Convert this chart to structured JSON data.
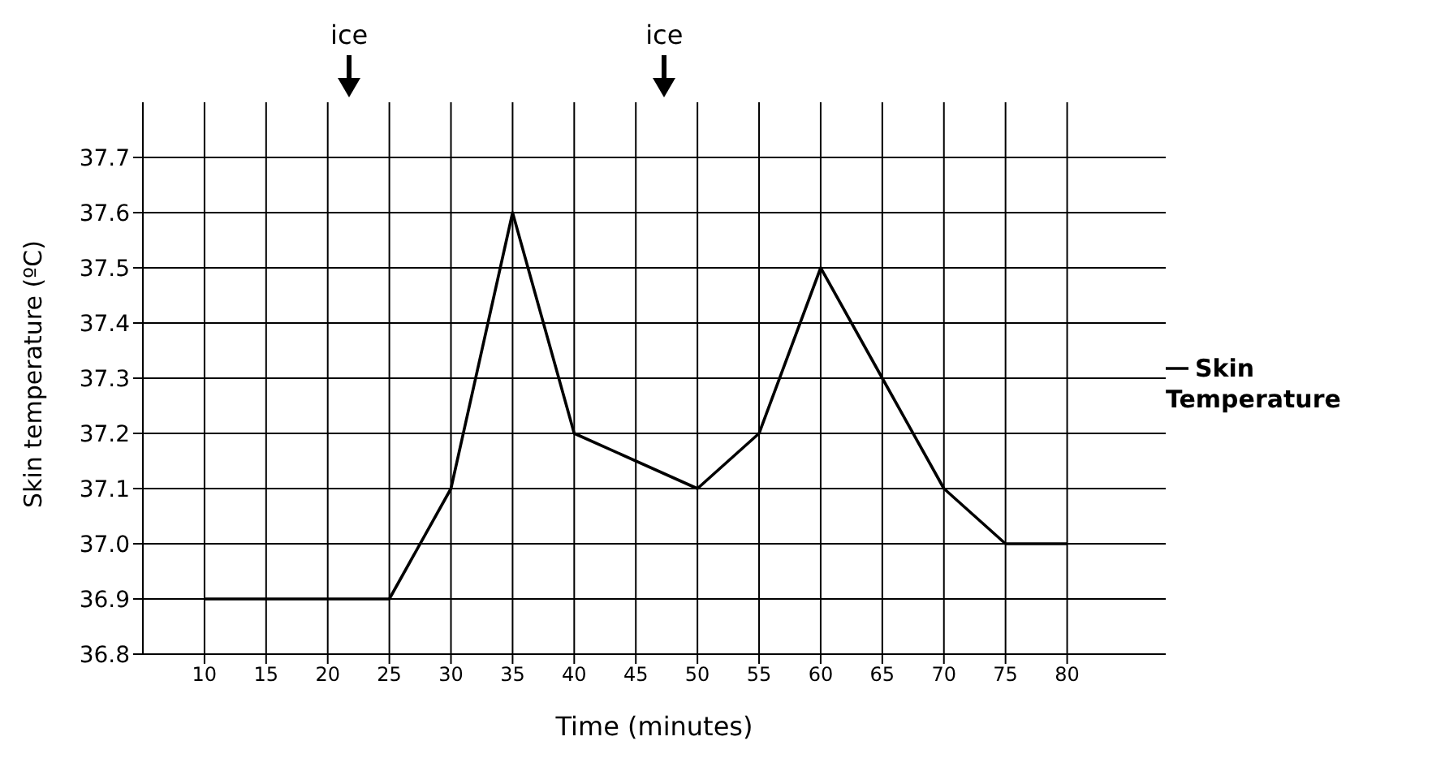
{
  "chart_data": {
    "type": "line",
    "xlabel": "Time (minutes)",
    "ylabel": "Skin temperature (ºC)",
    "x": [
      10,
      25,
      30,
      35,
      40,
      50,
      55,
      60,
      65,
      70,
      75,
      80
    ],
    "series": [
      {
        "name": "Skin Temperature",
        "color": "#000000",
        "values": [
          36.9,
          36.9,
          37.1,
          37.6,
          37.2,
          37.1,
          37.2,
          37.5,
          37.3,
          37.1,
          37.0,
          37.0
        ]
      }
    ],
    "xlim": [
      5,
      88
    ],
    "xticks": [
      10,
      15,
      20,
      25,
      30,
      35,
      40,
      45,
      50,
      55,
      60,
      65,
      70,
      75,
      80
    ],
    "ylim": [
      36.8,
      37.8
    ],
    "yticks": [
      36.8,
      36.9,
      {
        "value": 37,
        "label": "37.0"
      },
      37.1,
      37.2,
      37.3,
      37.4,
      37.5,
      37.6,
      37.7
    ],
    "grid": true,
    "legend": "right",
    "marker": "none",
    "line_style": "solid",
    "annotations": [
      "ice",
      "ice"
    ]
  }
}
